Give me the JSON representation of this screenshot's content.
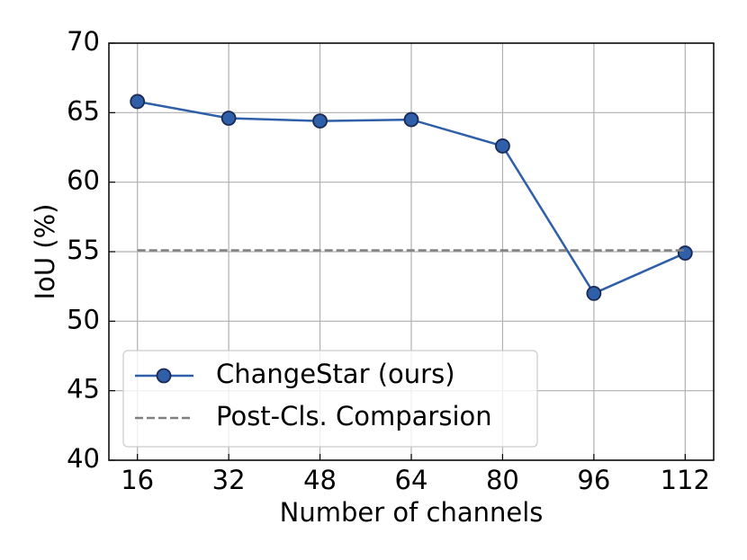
{
  "chart_data": {
    "type": "line",
    "x_label": "Number of channels",
    "y_label": "IoU (%)",
    "xlim": [
      11,
      117
    ],
    "ylim": [
      40,
      70
    ],
    "xticks": [
      16,
      32,
      48,
      64,
      80,
      96,
      112
    ],
    "yticks": [
      40,
      45,
      50,
      55,
      60,
      65,
      70
    ],
    "grid": true,
    "legend": "lower left",
    "series": [
      {
        "name": "ChangeStar (ours)",
        "color": "#2f5fa8",
        "marker": "circle",
        "linestyle": "solid",
        "x": [
          16,
          32,
          48,
          64,
          80,
          96,
          112
        ],
        "values": [
          65.8,
          64.6,
          64.4,
          64.5,
          62.6,
          52.0,
          54.9
        ]
      },
      {
        "name": "Post-Cls. Comparsion",
        "color": "#808080",
        "marker": "none",
        "linestyle": "dashed",
        "x": [
          16,
          112
        ],
        "values": [
          55.1,
          55.1
        ]
      }
    ]
  }
}
